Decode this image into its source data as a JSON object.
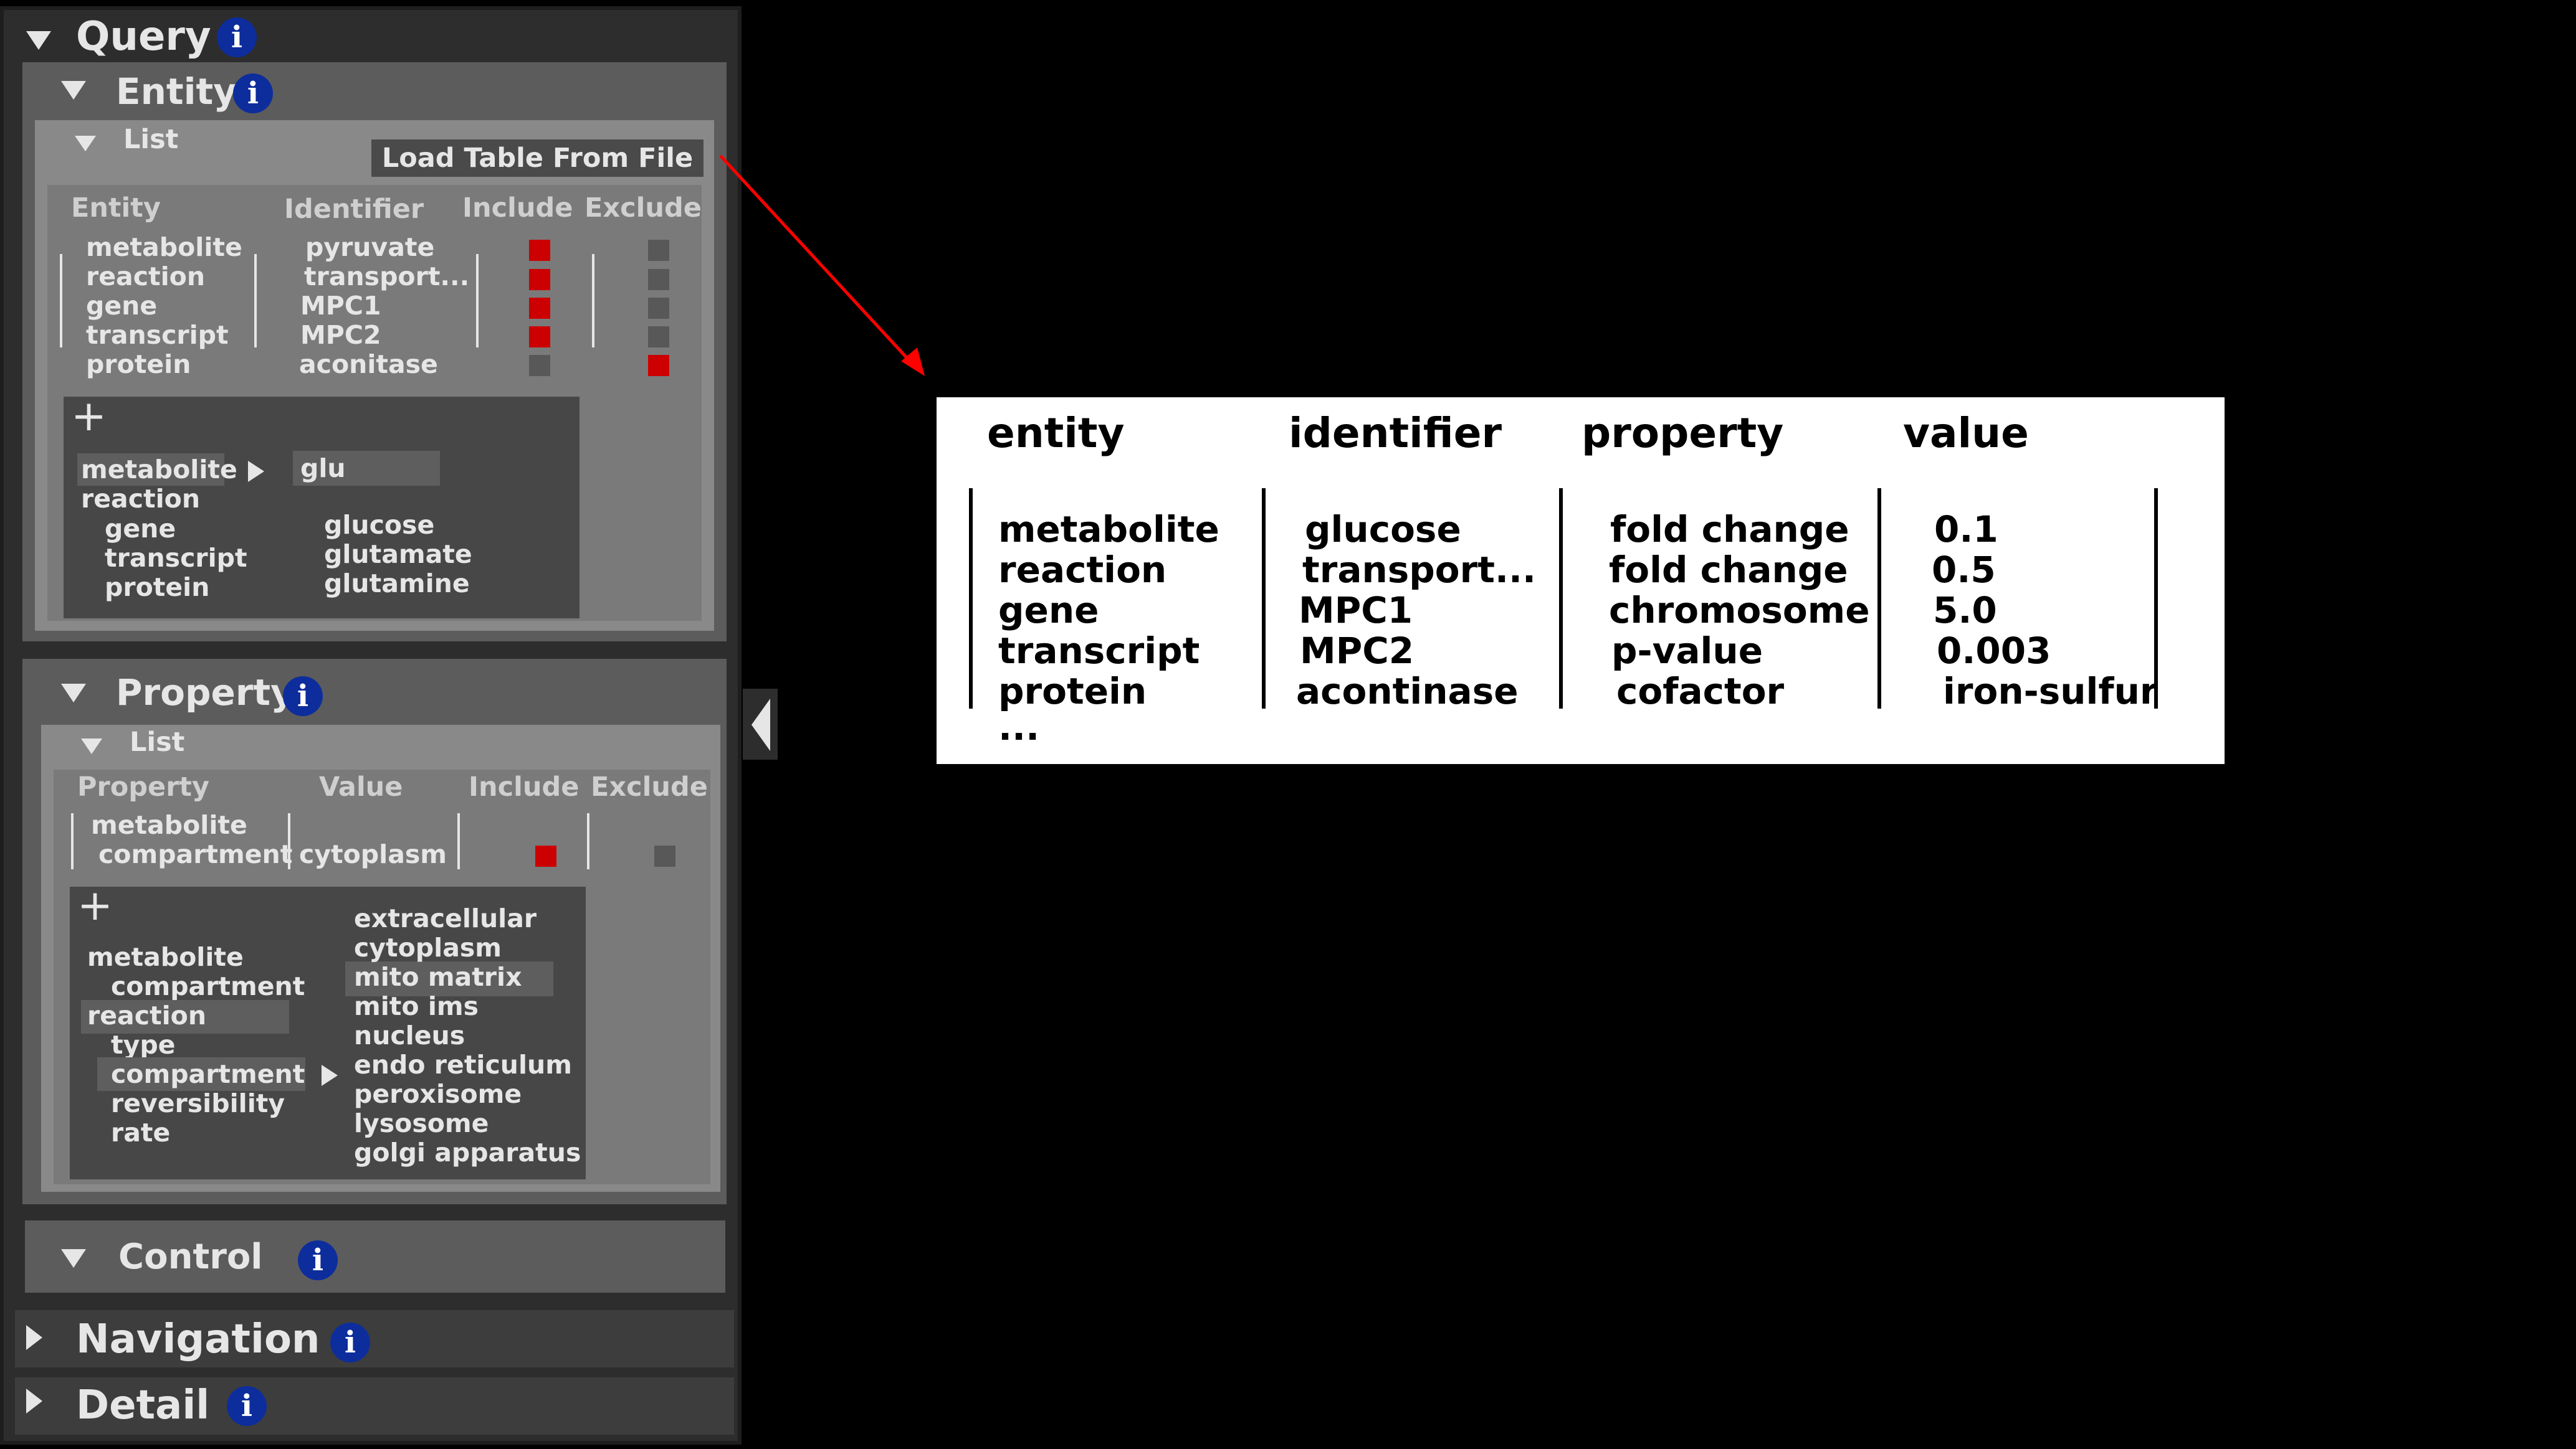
{
  "query": {
    "title": "Query",
    "entity": {
      "title": "Entity",
      "list": {
        "title": "List",
        "load_button": "Load Table From File",
        "headers": {
          "entity": "Entity",
          "identifier": "Identifier",
          "include": "Include",
          "exclude": "Exclude"
        },
        "rows": [
          {
            "entity": "metabolite",
            "identifier": "pyruvate",
            "include": true,
            "exclude": false
          },
          {
            "entity": "reaction",
            "identifier": "transport...",
            "include": true,
            "exclude": false
          },
          {
            "entity": "gene",
            "identifier": "MPC1",
            "include": true,
            "exclude": false
          },
          {
            "entity": "transcript",
            "identifier": "MPC2",
            "include": true,
            "exclude": false
          },
          {
            "entity": "protein",
            "identifier": "aconitase",
            "include": false,
            "exclude": true
          }
        ],
        "add_symbol": "+",
        "entity_options": [
          "metabolite",
          "reaction",
          "gene",
          "transcript",
          "protein"
        ],
        "search_value": "glu",
        "suggestions": [
          "glucose",
          "glutamate",
          "glutamine"
        ]
      }
    },
    "property": {
      "title": "Property",
      "list": {
        "title": "List",
        "headers": {
          "property": "Property",
          "value": "Value",
          "include": "Include",
          "exclude": "Exclude"
        },
        "row": {
          "property_line1": "metabolite",
          "property_line2": "compartment",
          "value": "cytoplasm",
          "include": true,
          "exclude": false
        },
        "add_symbol": "+",
        "tree": [
          "metabolite",
          "compartment",
          "reaction",
          "type",
          "compartment",
          "reversibility",
          "rate"
        ],
        "values": [
          "extracellular",
          "cytoplasm",
          "mito matrix",
          "mito ims",
          "nucleus",
          "endo reticulum",
          "peroxisome",
          "lysosome",
          "golgi apparatus"
        ]
      }
    },
    "control": {
      "title": "Control"
    }
  },
  "navigation": {
    "title": "Navigation"
  },
  "detail": {
    "title": "Detail"
  },
  "file_table": {
    "headers": [
      "entity",
      "identifier",
      "property",
      "value"
    ],
    "rows": [
      [
        "metabolite",
        "glucose",
        "fold change",
        "0.1"
      ],
      [
        "reaction",
        "transport...",
        "fold change",
        "0.5"
      ],
      [
        "gene",
        "MPC1",
        "chromosome",
        "5.0"
      ],
      [
        "transcript",
        "MPC2",
        "p-value",
        "0.003"
      ],
      [
        "protein",
        "acontinase",
        "cofactor",
        "iron-sulfur"
      ]
    ],
    "ellipsis": "..."
  },
  "colors": {
    "include_on": "#cc0000",
    "exclude_off": "#585858",
    "info": "#0d2d9c",
    "arrow": "#ff0000"
  },
  "icons": {
    "expand": "triangle-down",
    "collapse": "triangle-right",
    "info": "info-icon",
    "panel_toggle": "chevron-left"
  }
}
